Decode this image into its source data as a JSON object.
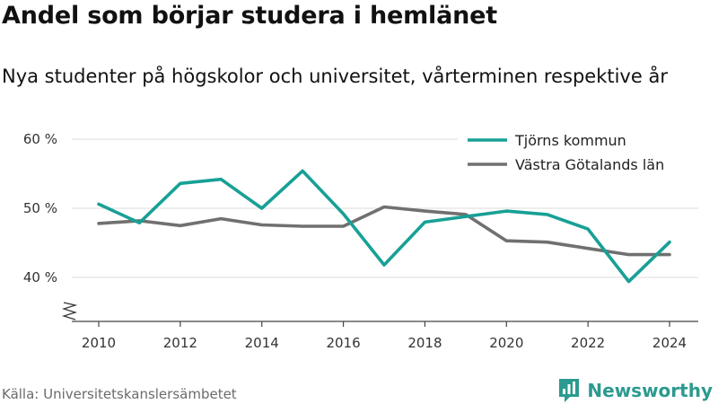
{
  "title": "Andel som börjar studera i hemlänet",
  "subtitle": "Nya studenter på högskolor och universitet, vårterminen respektive år",
  "source": "Källa: Universitetskanslersämbetet",
  "brand": {
    "name": "Newsworthy",
    "icon": "newsworthy-logo-icon",
    "color": "#2c9a8f"
  },
  "chart_data": {
    "type": "line",
    "x": [
      2010,
      2011,
      2012,
      2013,
      2014,
      2015,
      2016,
      2017,
      2018,
      2019,
      2020,
      2021,
      2022,
      2023,
      2024
    ],
    "series": [
      {
        "name": "Tjörns kommun",
        "color": "#18a096",
        "values": [
          50.6,
          47.9,
          53.6,
          54.2,
          50.0,
          55.4,
          49.2,
          41.8,
          48.0,
          48.8,
          49.6,
          49.1,
          47.0,
          39.4,
          45.1
        ]
      },
      {
        "name": "Västra Götalands län",
        "color": "#707070",
        "values": [
          47.8,
          48.2,
          47.5,
          48.5,
          47.6,
          47.4,
          47.4,
          50.2,
          49.6,
          49.1,
          45.3,
          45.1,
          44.2,
          43.3,
          43.3
        ]
      }
    ],
    "xticks": [
      2010,
      2012,
      2014,
      2016,
      2018,
      2020,
      2022,
      2024
    ],
    "yticks": [
      {
        "value": 40,
        "label": "40 %"
      },
      {
        "value": 50,
        "label": "50 %"
      },
      {
        "value": 60,
        "label": "60 %"
      }
    ],
    "xlim": [
      2010,
      2024
    ],
    "ylim": [
      40,
      60
    ],
    "grid": "horizontal",
    "legend": "top-right",
    "axis_break": true
  }
}
